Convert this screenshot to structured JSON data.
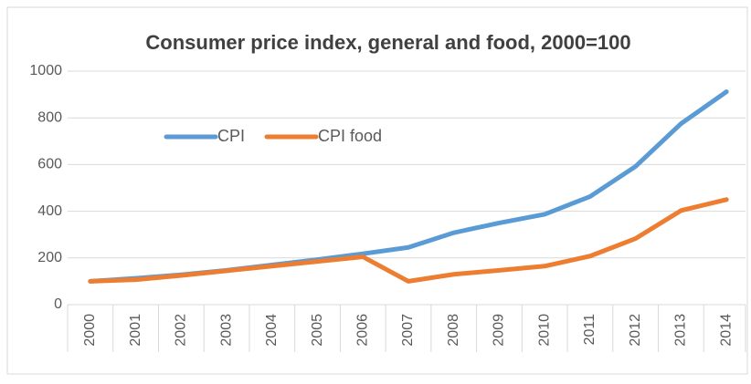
{
  "chart_data": {
    "type": "line",
    "title": "Consumer price index, general and food, 2000=100",
    "categories": [
      "2000",
      "2001",
      "2002",
      "2003",
      "2004",
      "2005",
      "2006",
      "2007",
      "2008",
      "2009",
      "2010",
      "2011",
      "2012",
      "2013",
      "2014"
    ],
    "series": [
      {
        "name": "CPI",
        "color": "#5b9bd5",
        "values": [
          100,
          113,
          128,
          147,
          170,
          193,
          218,
          245,
          308,
          350,
          387,
          463,
          592,
          775,
          912
        ]
      },
      {
        "name": "CPI food",
        "color": "#ed7d31",
        "values": [
          100,
          107,
          125,
          145,
          165,
          185,
          205,
          100,
          130,
          147,
          165,
          208,
          283,
          403,
          450
        ]
      }
    ],
    "ylim": [
      0,
      1000
    ],
    "yticks": [
      0,
      200,
      400,
      600,
      800,
      1000
    ],
    "grid": true,
    "legend": "top-left"
  }
}
